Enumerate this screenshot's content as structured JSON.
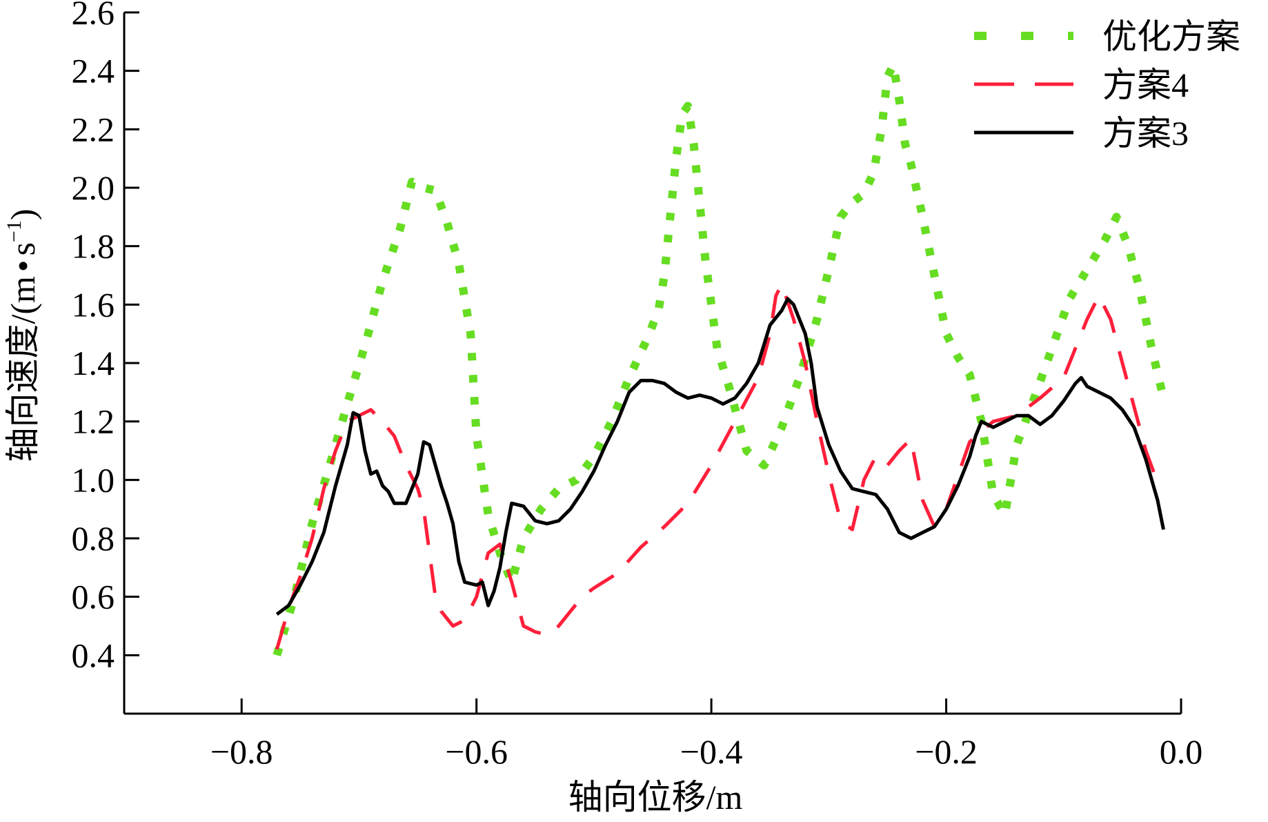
{
  "chart_data": {
    "type": "line",
    "title": "",
    "xlabel": "轴向位移/m",
    "ylabel": "轴向速度/(m·s⁻¹)",
    "ylabel_parts": {
      "main": "轴向速度/(m",
      "dot": "•",
      "s": "s",
      "sup": "−1",
      "close": ")"
    },
    "xlim": [
      -0.9,
      0.0
    ],
    "ylim": [
      0.2,
      2.6
    ],
    "xticks": [
      -0.8,
      -0.6,
      -0.4,
      -0.2,
      0.0
    ],
    "xtick_labels": [
      "−0.8",
      "−0.6",
      "−0.4",
      "−0.2",
      "0.0"
    ],
    "yticks": [
      0.4,
      0.6,
      0.8,
      1.0,
      1.2,
      1.4,
      1.6,
      1.8,
      2.0,
      2.2,
      2.4,
      2.6
    ],
    "ytick_labels": [
      "0.4",
      "0.6",
      "0.8",
      "1.0",
      "1.2",
      "1.4",
      "1.6",
      "1.8",
      "2.0",
      "2.2",
      "2.4",
      "2.6"
    ],
    "grid": false,
    "legend_position": "top-right",
    "series": [
      {
        "name": "优化方案",
        "style": "dotted",
        "color": "#66dd22",
        "x": [
          -0.77,
          -0.755,
          -0.74,
          -0.725,
          -0.71,
          -0.695,
          -0.68,
          -0.665,
          -0.655,
          -0.645,
          -0.635,
          -0.625,
          -0.615,
          -0.605,
          -0.6,
          -0.59,
          -0.58,
          -0.57,
          -0.56,
          -0.545,
          -0.53,
          -0.515,
          -0.5,
          -0.485,
          -0.47,
          -0.455,
          -0.445,
          -0.44,
          -0.435,
          -0.43,
          -0.425,
          -0.42,
          -0.415,
          -0.41,
          -0.405,
          -0.4,
          -0.395,
          -0.385,
          -0.37,
          -0.355,
          -0.34,
          -0.325,
          -0.31,
          -0.3,
          -0.29,
          -0.28,
          -0.27,
          -0.262,
          -0.255,
          -0.25,
          -0.245,
          -0.24,
          -0.235,
          -0.23,
          -0.22,
          -0.21,
          -0.2,
          -0.19,
          -0.18,
          -0.17,
          -0.16,
          -0.15,
          -0.14,
          -0.125,
          -0.11,
          -0.095,
          -0.08,
          -0.065,
          -0.055,
          -0.045,
          -0.035,
          -0.025,
          -0.015
        ],
        "y": [
          0.4,
          0.6,
          0.85,
          1.05,
          1.26,
          1.46,
          1.68,
          1.86,
          2.02,
          2.0,
          1.99,
          1.88,
          1.74,
          1.5,
          1.15,
          0.88,
          0.75,
          0.65,
          0.8,
          0.9,
          0.97,
          1.0,
          1.08,
          1.2,
          1.35,
          1.48,
          1.58,
          1.7,
          1.9,
          2.1,
          2.25,
          2.28,
          2.15,
          1.95,
          1.75,
          1.6,
          1.45,
          1.32,
          1.1,
          1.05,
          1.18,
          1.35,
          1.55,
          1.72,
          1.9,
          1.95,
          1.98,
          2.05,
          2.2,
          2.38,
          2.42,
          2.3,
          2.15,
          2.08,
          1.9,
          1.7,
          1.5,
          1.42,
          1.36,
          1.2,
          0.95,
          0.88,
          1.12,
          1.28,
          1.45,
          1.62,
          1.72,
          1.82,
          1.9,
          1.8,
          1.65,
          1.45,
          1.28
        ]
      },
      {
        "name": "方案4",
        "style": "dashed",
        "color": "#ff1f3a",
        "x": [
          -0.77,
          -0.76,
          -0.75,
          -0.74,
          -0.73,
          -0.72,
          -0.71,
          -0.7,
          -0.69,
          -0.68,
          -0.67,
          -0.66,
          -0.65,
          -0.645,
          -0.64,
          -0.635,
          -0.63,
          -0.62,
          -0.61,
          -0.6,
          -0.59,
          -0.58,
          -0.57,
          -0.56,
          -0.55,
          -0.54,
          -0.53,
          -0.52,
          -0.51,
          -0.5,
          -0.48,
          -0.46,
          -0.44,
          -0.42,
          -0.4,
          -0.38,
          -0.36,
          -0.35,
          -0.345,
          -0.34,
          -0.33,
          -0.32,
          -0.31,
          -0.3,
          -0.29,
          -0.28,
          -0.27,
          -0.26,
          -0.25,
          -0.24,
          -0.23,
          -0.22,
          -0.21,
          -0.2,
          -0.18,
          -0.16,
          -0.14,
          -0.12,
          -0.1,
          -0.09,
          -0.08,
          -0.07,
          -0.06,
          -0.05,
          -0.04,
          -0.03,
          -0.02
        ],
        "y": [
          0.42,
          0.56,
          0.67,
          0.8,
          0.97,
          1.1,
          1.2,
          1.22,
          1.24,
          1.2,
          1.15,
          1.05,
          0.97,
          0.9,
          0.75,
          0.6,
          0.55,
          0.5,
          0.52,
          0.6,
          0.75,
          0.78,
          0.65,
          0.5,
          0.48,
          0.47,
          0.5,
          0.55,
          0.6,
          0.63,
          0.68,
          0.77,
          0.84,
          0.92,
          1.05,
          1.2,
          1.35,
          1.5,
          1.63,
          1.67,
          1.55,
          1.4,
          1.2,
          1.02,
          0.86,
          0.83,
          1.0,
          1.08,
          1.05,
          1.1,
          1.14,
          0.93,
          0.84,
          0.9,
          1.13,
          1.2,
          1.22,
          1.28,
          1.35,
          1.45,
          1.55,
          1.63,
          1.55,
          1.4,
          1.25,
          1.1,
          0.99
        ]
      },
      {
        "name": "方案3",
        "style": "solid",
        "color": "#000000",
        "x": [
          -0.77,
          -0.76,
          -0.75,
          -0.74,
          -0.73,
          -0.72,
          -0.71,
          -0.705,
          -0.7,
          -0.695,
          -0.69,
          -0.685,
          -0.68,
          -0.675,
          -0.67,
          -0.66,
          -0.65,
          -0.645,
          -0.64,
          -0.635,
          -0.63,
          -0.625,
          -0.62,
          -0.615,
          -0.61,
          -0.6,
          -0.595,
          -0.59,
          -0.585,
          -0.58,
          -0.575,
          -0.57,
          -0.56,
          -0.55,
          -0.54,
          -0.53,
          -0.52,
          -0.51,
          -0.5,
          -0.49,
          -0.48,
          -0.47,
          -0.46,
          -0.45,
          -0.44,
          -0.43,
          -0.42,
          -0.41,
          -0.4,
          -0.39,
          -0.38,
          -0.37,
          -0.36,
          -0.35,
          -0.34,
          -0.335,
          -0.33,
          -0.32,
          -0.315,
          -0.31,
          -0.3,
          -0.29,
          -0.28,
          -0.27,
          -0.26,
          -0.25,
          -0.24,
          -0.23,
          -0.22,
          -0.21,
          -0.2,
          -0.19,
          -0.18,
          -0.175,
          -0.17,
          -0.16,
          -0.15,
          -0.14,
          -0.13,
          -0.12,
          -0.11,
          -0.1,
          -0.09,
          -0.085,
          -0.08,
          -0.07,
          -0.06,
          -0.05,
          -0.04,
          -0.03,
          -0.02,
          -0.015
        ],
        "y": [
          0.54,
          0.57,
          0.64,
          0.72,
          0.82,
          0.98,
          1.12,
          1.23,
          1.22,
          1.1,
          1.02,
          1.03,
          0.98,
          0.96,
          0.92,
          0.92,
          1.02,
          1.13,
          1.12,
          1.05,
          0.98,
          0.92,
          0.85,
          0.72,
          0.65,
          0.64,
          0.65,
          0.57,
          0.62,
          0.7,
          0.82,
          0.92,
          0.91,
          0.86,
          0.85,
          0.86,
          0.9,
          0.96,
          1.03,
          1.12,
          1.2,
          1.3,
          1.34,
          1.34,
          1.33,
          1.3,
          1.28,
          1.29,
          1.28,
          1.26,
          1.28,
          1.33,
          1.4,
          1.53,
          1.58,
          1.62,
          1.6,
          1.5,
          1.4,
          1.25,
          1.12,
          1.03,
          0.97,
          0.96,
          0.95,
          0.9,
          0.82,
          0.8,
          0.82,
          0.84,
          0.9,
          0.98,
          1.08,
          1.15,
          1.2,
          1.18,
          1.2,
          1.22,
          1.22,
          1.19,
          1.22,
          1.27,
          1.33,
          1.35,
          1.32,
          1.3,
          1.28,
          1.24,
          1.18,
          1.07,
          0.93,
          0.83
        ]
      }
    ]
  }
}
